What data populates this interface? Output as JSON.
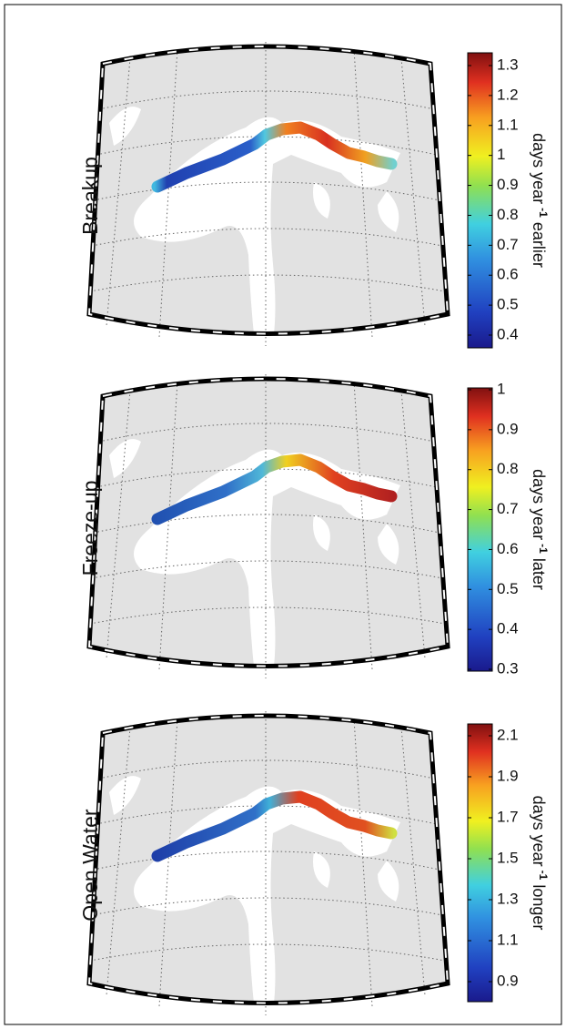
{
  "panels": [
    {
      "title": "Breakup",
      "colorbar": {
        "ticks": [
          0.4,
          0.5,
          0.6,
          0.7,
          0.8,
          0.9,
          1,
          1.1,
          1.2,
          1.3
        ],
        "label": {
          "text": "days year",
          "sup": "-1",
          "suffix": "earlier"
        }
      }
    },
    {
      "title": "Freeze-up",
      "colorbar": {
        "ticks": [
          0.3,
          0.4,
          0.5,
          0.6,
          0.7,
          0.8,
          0.9,
          1
        ],
        "label": {
          "text": "days year",
          "sup": "-1",
          "suffix": "later"
        }
      }
    },
    {
      "title": "Open Water",
      "colorbar": {
        "ticks": [
          0.9,
          1.1,
          1.3,
          1.5,
          1.7,
          1.9,
          2.1
        ],
        "label": {
          "text": "days year",
          "sup": "-1",
          "suffix": "longer"
        }
      }
    }
  ]
}
